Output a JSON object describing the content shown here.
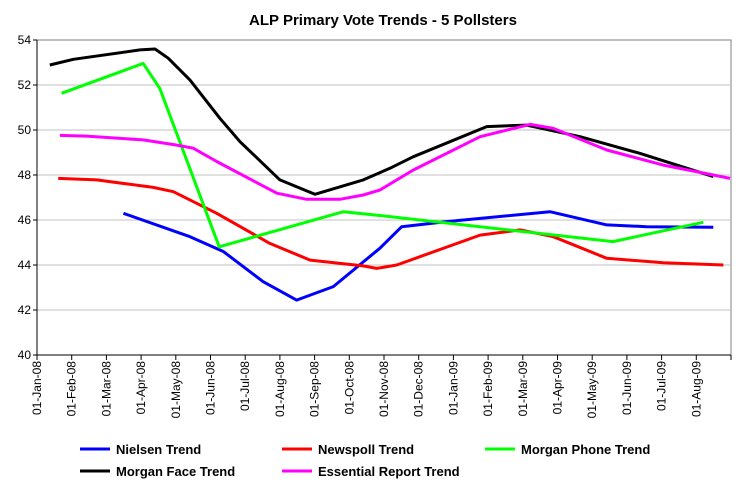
{
  "chart_data": {
    "type": "line",
    "title": "ALP Primary Vote Trends - 5 Pollsters",
    "xlabel": "",
    "ylabel": "",
    "ylim": [
      40,
      54
    ],
    "yticks": [
      40,
      42,
      44,
      46,
      48,
      50,
      52,
      54
    ],
    "xlim_months": [
      0,
      20
    ],
    "x_unit": "months since 01-Jan-08",
    "xtick_labels": [
      "01-Jan-08",
      "01-Feb-08",
      "01-Mar-08",
      "01-Apr-08",
      "01-May-08",
      "01-Jun-08",
      "01-Jul-08",
      "01-Aug-08",
      "01-Sep-08",
      "01-Oct-08",
      "01-Nov-08",
      "01-Dec-08",
      "01-Jan-09",
      "01-Feb-09",
      "01-Mar-09",
      "01-Apr-09",
      "01-May-09",
      "01-Jun-09",
      "01-Jul-09",
      "01-Aug-09"
    ],
    "grid": "horizontal",
    "legend_placement": "bottom",
    "series": [
      {
        "name": "Nielsen Trend",
        "color": "#0000ff",
        "points": [
          [
            2.49,
            46.3
          ],
          [
            4.41,
            45.26
          ],
          [
            5.37,
            44.6
          ],
          [
            6.52,
            43.26
          ],
          [
            7.48,
            42.44
          ],
          [
            8.54,
            43.04
          ],
          [
            9.88,
            44.74
          ],
          [
            10.51,
            45.7
          ],
          [
            11.8,
            45.93
          ],
          [
            14.78,
            46.37
          ],
          [
            16.42,
            45.78
          ],
          [
            17.57,
            45.7
          ],
          [
            19.49,
            45.68
          ]
        ]
      },
      {
        "name": "Newspoll Trend",
        "color": "#ff0000",
        "points": [
          [
            0.61,
            47.85
          ],
          [
            1.72,
            47.78
          ],
          [
            3.35,
            47.45
          ],
          [
            3.93,
            47.26
          ],
          [
            5.18,
            46.3
          ],
          [
            6.71,
            44.96
          ],
          [
            7.87,
            44.22
          ],
          [
            9.4,
            43.96
          ],
          [
            9.79,
            43.85
          ],
          [
            10.37,
            44.0
          ],
          [
            12.77,
            45.33
          ],
          [
            13.92,
            45.56
          ],
          [
            14.88,
            45.26
          ],
          [
            16.42,
            44.3
          ],
          [
            18.05,
            44.1
          ],
          [
            19.78,
            44.0
          ]
        ]
      },
      {
        "name": "Morgan Phone Trend",
        "color": "#00ff00",
        "points": [
          [
            0.71,
            51.63
          ],
          [
            3.06,
            52.96
          ],
          [
            3.54,
            51.85
          ],
          [
            5.25,
            44.81
          ],
          [
            8.83,
            46.37
          ],
          [
            9.88,
            46.2
          ],
          [
            16.6,
            45.04
          ],
          [
            19.2,
            45.9
          ]
        ]
      },
      {
        "name": "Morgan Face Trend",
        "color": "#000000",
        "points": [
          [
            0.37,
            52.89
          ],
          [
            1.05,
            53.14
          ],
          [
            2.97,
            53.56
          ],
          [
            3.4,
            53.6
          ],
          [
            3.78,
            53.19
          ],
          [
            4.41,
            52.22
          ],
          [
            5.27,
            50.52
          ],
          [
            5.85,
            49.48
          ],
          [
            7.0,
            47.78
          ],
          [
            8.01,
            47.14
          ],
          [
            9.4,
            47.78
          ],
          [
            10.17,
            48.3
          ],
          [
            10.84,
            48.81
          ],
          [
            12.96,
            50.15
          ],
          [
            14.11,
            50.22
          ],
          [
            15.65,
            49.7
          ],
          [
            17.38,
            48.96
          ],
          [
            19.49,
            47.93
          ]
        ]
      },
      {
        "name": "Essential Report Trend",
        "color": "#ff00ff",
        "points": [
          [
            0.66,
            49.76
          ],
          [
            1.43,
            49.73
          ],
          [
            3.06,
            49.56
          ],
          [
            4.03,
            49.33
          ],
          [
            4.5,
            49.19
          ],
          [
            5.18,
            48.6
          ],
          [
            6.91,
            47.19
          ],
          [
            7.77,
            46.92
          ],
          [
            8.73,
            46.92
          ],
          [
            9.4,
            47.11
          ],
          [
            9.88,
            47.33
          ],
          [
            10.84,
            48.22
          ],
          [
            12.77,
            49.7
          ],
          [
            14.21,
            50.25
          ],
          [
            14.88,
            50.07
          ],
          [
            16.42,
            49.11
          ],
          [
            18.05,
            48.44
          ],
          [
            19.49,
            48.0
          ],
          [
            19.97,
            47.85
          ]
        ]
      }
    ]
  }
}
